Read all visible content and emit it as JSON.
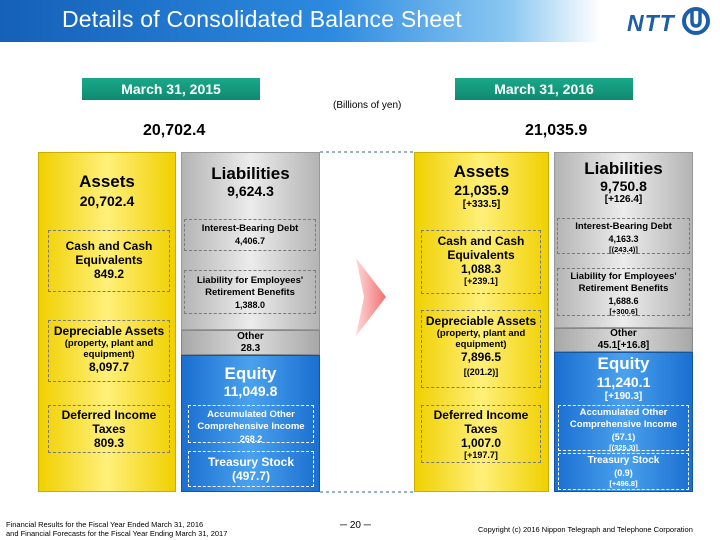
{
  "header": {
    "title": "Details of Consolidated Balance Sheet",
    "logo": "NTT",
    "logo_icon": "ntt-logo-icon"
  },
  "unit_label": "(Billions of yen)",
  "left": {
    "date": "March 31, 2015",
    "total": "20,702.4",
    "assets": {
      "title": "Assets",
      "value": "20,702.4",
      "cash_line1": "Cash and Cash",
      "cash_line2": "Equivalents",
      "cash_value": "849.2",
      "dep_line1": "Depreciable Assets",
      "dep_line2": "(property, plant and",
      "dep_line3": "equipment)",
      "dep_value": "8,097.7",
      "dit_line1": "Deferred Income",
      "dit_line2": "Taxes",
      "dit_value": "809.3"
    },
    "liabilities": {
      "title": "Liabilities",
      "value": "9,624.3",
      "ibd_label": "Interest-Bearing Debt",
      "ibd_value": "4,406.7",
      "emp_line1": "Liability for Employees'",
      "emp_line2": "Retirement Benefits",
      "emp_value": "1,388.0",
      "other_label": "Other",
      "other_value": "28.3"
    },
    "equity": {
      "title": "Equity",
      "value": "11,049.8",
      "aoci_line1": "Accumulated Other",
      "aoci_line2": "Comprehensive Income",
      "aoci_value": "268.2",
      "ts_label": "Treasury Stock",
      "ts_value": "(497.7)"
    }
  },
  "right": {
    "date": "March 31, 2016",
    "total": "21,035.9",
    "assets": {
      "title": "Assets",
      "value": "21,035.9",
      "change": "[+333.5]",
      "cash_line1": "Cash and Cash",
      "cash_line2": "Equivalents",
      "cash_value": "1,088.3",
      "cash_change": "[+239.1]",
      "dep_line1": "Depreciable Assets",
      "dep_line2": "(property, plant and",
      "dep_line3": "equipment)",
      "dep_value": "7,896.5",
      "dep_change": "[(201.2)]",
      "dit_line1": "Deferred Income",
      "dit_line2": "Taxes",
      "dit_value": "1,007.0",
      "dit_change": "[+197.7]"
    },
    "liabilities": {
      "title": "Liabilities",
      "value": "9,750.8",
      "change": "[+126.4]",
      "ibd_label": "Interest-Bearing Debt",
      "ibd_value": "4,163.3",
      "ibd_change": "[(243.4)]",
      "emp_line1": "Liability for Employees'",
      "emp_line2": "Retirement Benefits",
      "emp_value": "1,688.6",
      "emp_change": "[+300.6]",
      "other_label": "Other",
      "other_value": "45.1[+16.8]"
    },
    "equity": {
      "title": "Equity",
      "value": "11,240.1",
      "change": "[+190.3]",
      "aoci_line1": "Accumulated Other",
      "aoci_line2": "Comprehensive Income",
      "aoci_value": "(57.1)",
      "aoci_change": "[(325.3)]",
      "ts_label": "Treasury Stock",
      "ts_value": "(0.9)",
      "ts_change": "[+496.8]"
    }
  },
  "footer": {
    "line1": "Financial Results for the Fiscal Year Ended March 31, 2016",
    "line2": "and Financial Forecasts for the Fiscal Year Ending March 31, 2017",
    "page": "─ 20 ─",
    "copyright": "Copyright (c) 2016 Nippon Telegraph and Telephone Corporation"
  },
  "colors": {
    "assets": "#f0d000",
    "liabilities": "#c8c8c8",
    "equity": "#2a86e0",
    "date_badge": "#17a084",
    "arrow": "#f08080"
  }
}
